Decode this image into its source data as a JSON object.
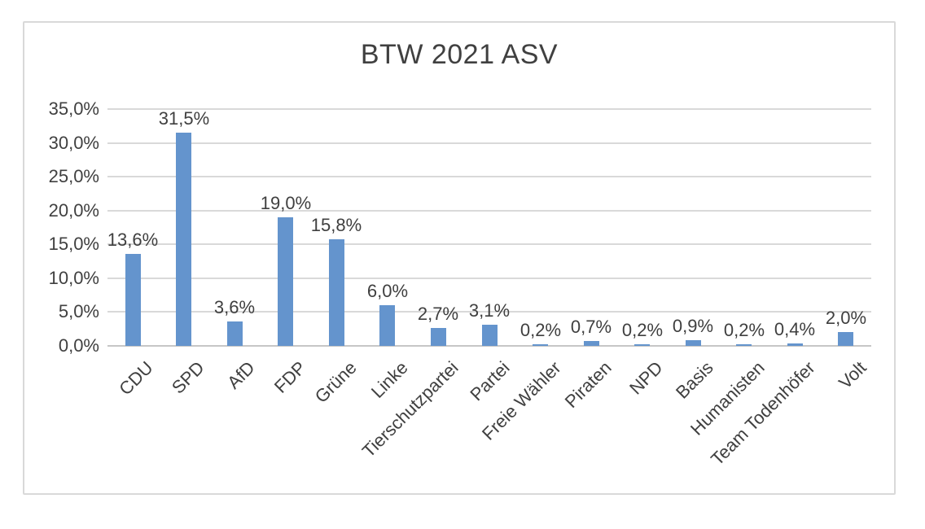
{
  "chart_data": {
    "type": "bar",
    "title": "BTW 2021 ASV",
    "categories": [
      "CDU",
      "SPD",
      "AfD",
      "FDP",
      "Grüne",
      "Linke",
      "Tierschutzpartei",
      "Partei",
      "Freie Wähler",
      "Piraten",
      "NPD",
      "Basis",
      "Humanisten",
      "Team Todenhöfer",
      "Volt"
    ],
    "values": [
      13.6,
      31.5,
      3.6,
      19.0,
      15.8,
      6.0,
      2.7,
      3.1,
      0.2,
      0.7,
      0.2,
      0.9,
      0.2,
      0.4,
      2.0
    ],
    "data_labels": [
      "13,6%",
      "31,5%",
      "3,6%",
      "19,0%",
      "15,8%",
      "6,0%",
      "2,7%",
      "3,1%",
      "0,2%",
      "0,7%",
      "0,2%",
      "0,9%",
      "0,2%",
      "0,4%",
      "2,0%"
    ],
    "y_tick_labels": [
      "0,0%",
      "5,0%",
      "10,0%",
      "15,0%",
      "20,0%",
      "25,0%",
      "30,0%",
      "35,0%"
    ],
    "xlabel": "",
    "ylabel": "",
    "ylim": [
      0,
      35
    ],
    "y_step": 5,
    "grid": true,
    "legend": "none",
    "data_label_position": "outside-end",
    "x_label_rotation_deg": 45,
    "colors": {
      "bar": "#6494CD",
      "gridline": "#D9D9D9",
      "axis_line": "#C6C6C6",
      "text": "#404040",
      "chart_border": "#D9D9D9",
      "background": "#FFFFFF"
    }
  }
}
